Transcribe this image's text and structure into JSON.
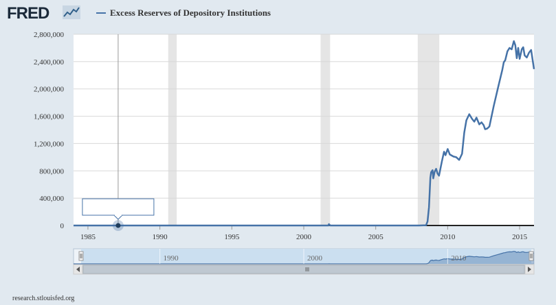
{
  "brand": {
    "logo_text": "FRED",
    "footer_source": "research.stlouisfed.org"
  },
  "colors": {
    "line": "#4572a7",
    "recession": "#e5e5e5",
    "navigator_fill": "#cbdff0",
    "navigator_line": "#4572a7"
  },
  "chart_data": {
    "type": "line",
    "title": "",
    "xlabel": "",
    "ylabel": "",
    "series": [
      {
        "name": "Excess Reserves of Depository Institutions",
        "points": [
          [
            1984.0,
            0
          ],
          [
            1990.0,
            0
          ],
          [
            1995.0,
            0
          ],
          [
            2000.0,
            0
          ],
          [
            2001.0,
            0
          ],
          [
            2001.7,
            0
          ],
          [
            2001.75,
            19000
          ],
          [
            2001.85,
            0
          ],
          [
            2005.0,
            0
          ],
          [
            2008.0,
            0
          ],
          [
            2008.5,
            4000
          ],
          [
            2008.6,
            60000
          ],
          [
            2008.7,
            270000
          ],
          [
            2008.8,
            700000
          ],
          [
            2008.85,
            780000
          ],
          [
            2008.95,
            810000
          ],
          [
            2009.0,
            690000
          ],
          [
            2009.1,
            790000
          ],
          [
            2009.2,
            830000
          ],
          [
            2009.3,
            760000
          ],
          [
            2009.4,
            730000
          ],
          [
            2009.6,
            940000
          ],
          [
            2009.75,
            1080000
          ],
          [
            2009.85,
            1030000
          ],
          [
            2010.0,
            1120000
          ],
          [
            2010.15,
            1040000
          ],
          [
            2010.4,
            1010000
          ],
          [
            2010.6,
            1000000
          ],
          [
            2010.8,
            960000
          ],
          [
            2011.0,
            1050000
          ],
          [
            2011.15,
            1360000
          ],
          [
            2011.3,
            1540000
          ],
          [
            2011.5,
            1630000
          ],
          [
            2011.7,
            1560000
          ],
          [
            2011.85,
            1520000
          ],
          [
            2012.0,
            1580000
          ],
          [
            2012.2,
            1480000
          ],
          [
            2012.35,
            1510000
          ],
          [
            2012.5,
            1470000
          ],
          [
            2012.6,
            1410000
          ],
          [
            2012.75,
            1420000
          ],
          [
            2012.9,
            1450000
          ],
          [
            2013.2,
            1750000
          ],
          [
            2013.5,
            2020000
          ],
          [
            2013.8,
            2280000
          ],
          [
            2013.9,
            2390000
          ],
          [
            2014.0,
            2420000
          ],
          [
            2014.15,
            2550000
          ],
          [
            2014.3,
            2600000
          ],
          [
            2014.45,
            2580000
          ],
          [
            2014.6,
            2700000
          ],
          [
            2014.7,
            2640000
          ],
          [
            2014.8,
            2450000
          ],
          [
            2014.9,
            2600000
          ],
          [
            2015.0,
            2440000
          ],
          [
            2015.15,
            2580000
          ],
          [
            2015.25,
            2610000
          ],
          [
            2015.35,
            2490000
          ],
          [
            2015.5,
            2460000
          ],
          [
            2015.65,
            2530000
          ],
          [
            2015.8,
            2570000
          ],
          [
            2015.9,
            2430000
          ],
          [
            2016.0,
            2290000
          ]
        ]
      }
    ],
    "recessions": [
      [
        1990.58,
        1991.17
      ],
      [
        2001.17,
        2001.83
      ],
      [
        2007.92,
        2009.42
      ]
    ],
    "xlim": [
      1984.0,
      2016.0
    ],
    "ylim": [
      0,
      2800000
    ],
    "y_ticks": [
      {
        "value": 0,
        "label": "0"
      },
      {
        "value": 400000,
        "label": "400,000"
      },
      {
        "value": 800000,
        "label": "800,000"
      },
      {
        "value": 1200000,
        "label": "1,200,000"
      },
      {
        "value": 1600000,
        "label": "1,600,000"
      },
      {
        "value": 2000000,
        "label": "2,000,000"
      },
      {
        "value": 2400000,
        "label": "2,400,000"
      },
      {
        "value": 2800000,
        "label": "2,800,000"
      }
    ],
    "x_ticks": [
      {
        "value": 1985,
        "label": "1985"
      },
      {
        "value": 1990,
        "label": "1990"
      },
      {
        "value": 1995,
        "label": "1995"
      },
      {
        "value": 2000,
        "label": "2000"
      },
      {
        "value": 2005,
        "label": "2005"
      },
      {
        "value": 2010,
        "label": "2010"
      },
      {
        "value": 2015,
        "label": "2015"
      }
    ],
    "navigator_ticks": [
      {
        "value": 1990,
        "label": "1990"
      },
      {
        "value": 2000,
        "label": "2000"
      },
      {
        "value": 2010,
        "label": "2010"
      }
    ],
    "hover": {
      "x": 1987.1,
      "y": 0
    },
    "grid": true,
    "legend": "top-left"
  }
}
